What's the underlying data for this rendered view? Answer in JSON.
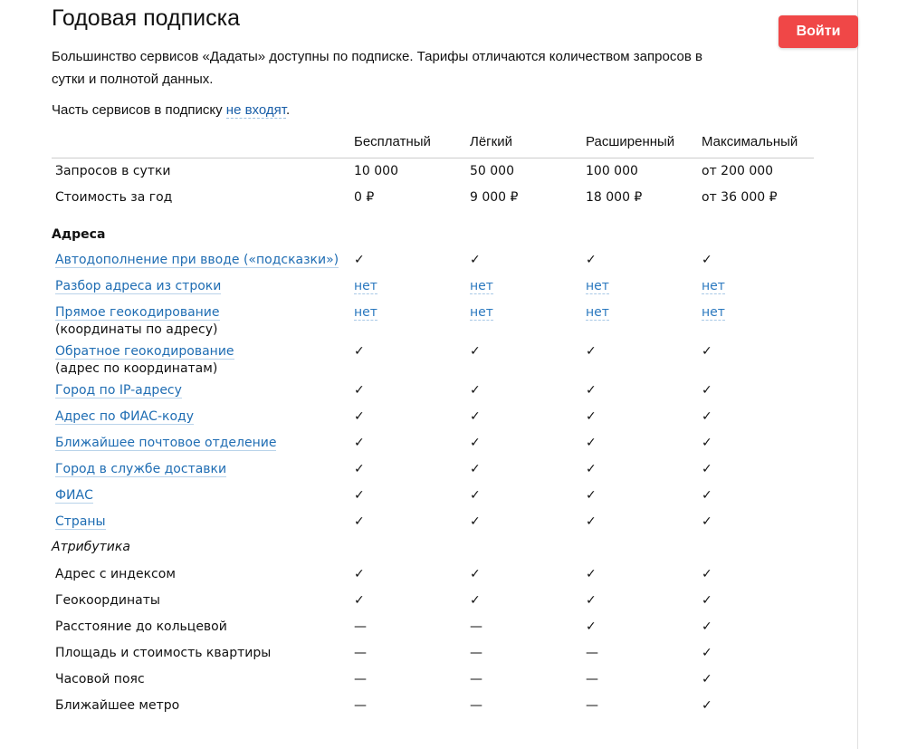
{
  "title": "Годовая подписка",
  "login_label": "Войти",
  "intro": "Большинство сервисов «Дадаты» доступны по подписке. Тарифы отличаются количеством запросов в сутки и полнотой данных.",
  "note": {
    "before": "Часть сервисов в подписку ",
    "link": "не входят",
    "after": "."
  },
  "plans": [
    "Бесплатный",
    "Лёгкий",
    "Расширенный",
    "Максимальный"
  ],
  "summary": [
    {
      "label": "Запросов в сутки",
      "values": [
        "10 000",
        "50 000",
        "100 000",
        "от 200 000"
      ]
    },
    {
      "label": "Стоимость за год",
      "values": [
        "0 ₽",
        "9 000 ₽",
        "18 000 ₽",
        "от 36 000 ₽"
      ]
    }
  ],
  "section": "Адреса",
  "services": [
    {
      "label": "Автодополнение при вводе («подсказки»)",
      "values": [
        "✓",
        "✓",
        "✓",
        "✓"
      ]
    },
    {
      "label": "Разбор адреса из строки",
      "values": [
        "нет",
        "нет",
        "нет",
        "нет"
      ]
    },
    {
      "label": "Прямое геокодирование",
      "sub": "(координаты по адресу)",
      "values": [
        "нет",
        "нет",
        "нет",
        "нет"
      ]
    },
    {
      "label": "Обратное геокодирование",
      "sub": "(адрес по координатам)",
      "values": [
        "✓",
        "✓",
        "✓",
        "✓"
      ]
    },
    {
      "label": "Город по IP-адресу",
      "values": [
        "✓",
        "✓",
        "✓",
        "✓"
      ]
    },
    {
      "label": "Адрес по ФИАС-коду",
      "values": [
        "✓",
        "✓",
        "✓",
        "✓"
      ]
    },
    {
      "label": "Ближайшее почтовое отделение",
      "values": [
        "✓",
        "✓",
        "✓",
        "✓"
      ]
    },
    {
      "label": "Город в службе доставки",
      "values": [
        "✓",
        "✓",
        "✓",
        "✓"
      ]
    },
    {
      "label": "ФИАС",
      "values": [
        "✓",
        "✓",
        "✓",
        "✓"
      ]
    },
    {
      "label": "Страны",
      "values": [
        "✓",
        "✓",
        "✓",
        "✓"
      ]
    }
  ],
  "attributes_heading": "Атрибутика",
  "attributes": [
    {
      "label": "Адрес с индексом",
      "values": [
        "✓",
        "✓",
        "✓",
        "✓"
      ]
    },
    {
      "label": "Геокоординаты",
      "values": [
        "✓",
        "✓",
        "✓",
        "✓"
      ]
    },
    {
      "label": "Расстояние до кольцевой",
      "values": [
        "—",
        "—",
        "✓",
        "✓"
      ]
    },
    {
      "label": "Площадь и стоимость квартиры",
      "values": [
        "—",
        "—",
        "—",
        "✓"
      ]
    },
    {
      "label": "Часовой пояс",
      "values": [
        "—",
        "—",
        "—",
        "✓"
      ]
    },
    {
      "label": "Ближайшее метро",
      "values": [
        "—",
        "—",
        "—",
        "✓"
      ]
    }
  ],
  "colors": {
    "accent": "#f04747",
    "link": "#1f6db3"
  }
}
